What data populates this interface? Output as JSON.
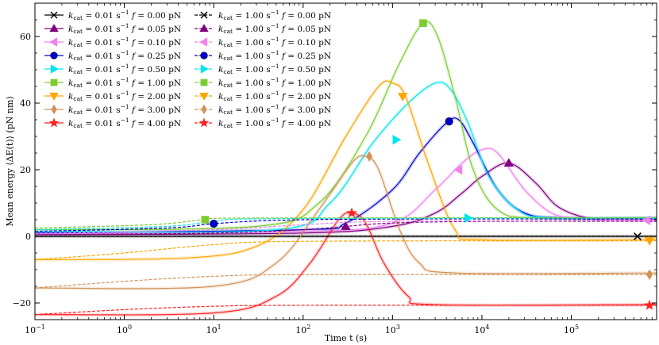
{
  "chart_data": {
    "type": "line",
    "title": "",
    "xlabel": "Time t (s)",
    "ylabel": "Mean energy ⟨ΔE(t)⟩ (pN nm)",
    "xscale": "log",
    "xlim": [
      0.1,
      900000
    ],
    "ylim": [
      -25,
      70
    ],
    "x_ticks": [
      {
        "value": 0.1,
        "base": "10",
        "exp": "−1"
      },
      {
        "value": 1,
        "base": "10",
        "exp": "0"
      },
      {
        "value": 10,
        "base": "10",
        "exp": "1"
      },
      {
        "value": 100,
        "base": "10",
        "exp": "2"
      },
      {
        "value": 1000,
        "base": "10",
        "exp": "3"
      },
      {
        "value": 10000,
        "base": "10",
        "exp": "4"
      },
      {
        "value": 100000,
        "base": "10",
        "exp": "5"
      }
    ],
    "y_ticks": [
      {
        "value": -20,
        "label": "−20"
      },
      {
        "value": 0,
        "label": "0"
      },
      {
        "value": 20,
        "label": "20"
      },
      {
        "value": 40,
        "label": "40"
      },
      {
        "value": 60,
        "label": "60"
      }
    ],
    "legend_location": "upper-left",
    "series": [
      {
        "name": "k_cat = 0.01 s^-1  f = 0.00 pN",
        "kcat_value": "0.01",
        "f_value": "0.00",
        "color": "#000000",
        "linestyle": "solid",
        "marker": "x",
        "points": [
          [
            0.1,
            0
          ],
          [
            900000,
            0
          ]
        ],
        "marker_at": [
          550000,
          0
        ]
      },
      {
        "name": "k_cat = 0.01 s^-1  f = 0.05 pN",
        "kcat_value": "0.01",
        "f_value": "0.05",
        "color": "#800080",
        "linestyle": "solid",
        "marker": "triangle-up",
        "points": [
          [
            0.1,
            0.5
          ],
          [
            100,
            1
          ],
          [
            1000,
            3
          ],
          [
            3000,
            7
          ],
          [
            6000,
            13
          ],
          [
            10000,
            18
          ],
          [
            20000,
            22
          ],
          [
            40000,
            16
          ],
          [
            70000,
            9
          ],
          [
            150000,
            5.5
          ],
          [
            300000,
            5
          ],
          [
            900000,
            5
          ]
        ],
        "marker_at": [
          20000,
          22
        ]
      },
      {
        "name": "k_cat = 0.01 s^-1  f = 0.10 pN",
        "kcat_value": "0.01",
        "f_value": "0.10",
        "color": "#ee82ee",
        "linestyle": "solid",
        "marker": "triangle-left",
        "points": [
          [
            0.1,
            0.8
          ],
          [
            100,
            1.5
          ],
          [
            1000,
            4
          ],
          [
            3000,
            14
          ],
          [
            6000,
            22
          ],
          [
            10000,
            26
          ],
          [
            15000,
            25
          ],
          [
            30000,
            14
          ],
          [
            60000,
            7
          ],
          [
            120000,
            5.5
          ],
          [
            300000,
            5
          ],
          [
            900000,
            5
          ]
        ],
        "marker_at": [
          5500,
          20
        ]
      },
      {
        "name": "k_cat = 0.01 s^-1  f = 0.25 pN",
        "kcat_value": "0.01",
        "f_value": "0.25",
        "color": "#0000cd",
        "linestyle": "solid",
        "marker": "circle",
        "points": [
          [
            0.1,
            1
          ],
          [
            100,
            2
          ],
          [
            300,
            4
          ],
          [
            1000,
            14
          ],
          [
            2000,
            25
          ],
          [
            4000,
            34
          ],
          [
            5500,
            35
          ],
          [
            8000,
            28
          ],
          [
            15000,
            14
          ],
          [
            30000,
            7
          ],
          [
            80000,
            5.5
          ],
          [
            900000,
            5.5
          ]
        ],
        "marker_at": [
          4300,
          34.5
        ]
      },
      {
        "name": "k_cat = 0.01 s^-1  f = 0.50 pN",
        "kcat_value": "0.01",
        "f_value": "0.50",
        "color": "#00e5ee",
        "linestyle": "solid",
        "marker": "triangle-right",
        "points": [
          [
            0.1,
            1.5
          ],
          [
            50,
            2
          ],
          [
            200,
            10
          ],
          [
            600,
            28
          ],
          [
            1500,
            40
          ],
          [
            3000,
            46
          ],
          [
            4500,
            44
          ],
          [
            7000,
            34
          ],
          [
            12000,
            18
          ],
          [
            25000,
            8
          ],
          [
            60000,
            5.5
          ],
          [
            900000,
            5.5
          ]
        ],
        "marker_at": [
          1100,
          29
        ]
      },
      {
        "name": "k_cat = 0.01 s^-1  f = 1.00 pN",
        "kcat_value": "0.01",
        "f_value": "1.00",
        "color": "#7ccd32",
        "linestyle": "solid",
        "marker": "square",
        "points": [
          [
            0.1,
            2
          ],
          [
            30,
            3
          ],
          [
            150,
            10
          ],
          [
            500,
            30
          ],
          [
            1200,
            52
          ],
          [
            2200,
            64
          ],
          [
            3200,
            60
          ],
          [
            5000,
            42
          ],
          [
            8000,
            20
          ],
          [
            15000,
            8
          ],
          [
            40000,
            5.5
          ],
          [
            900000,
            5.5
          ]
        ],
        "marker_at": [
          2200,
          64
        ]
      },
      {
        "name": "k_cat = 0.01 s^-1  f = 2.00 pN",
        "kcat_value": "0.01",
        "f_value": "2.00",
        "color": "#ffa500",
        "linestyle": "solid",
        "marker": "triangle-down",
        "points": [
          [
            0.1,
            -7
          ],
          [
            5,
            -6.5
          ],
          [
            30,
            -3
          ],
          [
            100,
            8
          ],
          [
            300,
            30
          ],
          [
            700,
            45
          ],
          [
            1000,
            46
          ],
          [
            1400,
            42
          ],
          [
            2500,
            22
          ],
          [
            5000,
            2
          ],
          [
            10000,
            -1
          ],
          [
            900000,
            -1
          ]
        ],
        "marker_at": [
          1300,
          42
        ]
      },
      {
        "name": "k_cat = 0.01 s^-1  f = 3.00 pN",
        "kcat_value": "0.01",
        "f_value": "3.00",
        "color": "#d2935a",
        "linestyle": "solid",
        "marker": "diamond",
        "points": [
          [
            0.1,
            -15.5
          ],
          [
            10,
            -15
          ],
          [
            50,
            -8
          ],
          [
            150,
            8
          ],
          [
            350,
            22
          ],
          [
            500,
            24
          ],
          [
            700,
            20
          ],
          [
            1200,
            2
          ],
          [
            2000,
            -8
          ],
          [
            5000,
            -11
          ],
          [
            900000,
            -11
          ]
        ],
        "marker_at": [
          550,
          24
        ]
      },
      {
        "name": "k_cat = 0.01 s^-1  f = 4.00 pN",
        "kcat_value": "0.01",
        "f_value": "4.00",
        "color": "#ff2020",
        "linestyle": "solid",
        "marker": "star",
        "points": [
          [
            0.1,
            -23.5
          ],
          [
            10,
            -23
          ],
          [
            50,
            -18
          ],
          [
            120,
            -8
          ],
          [
            250,
            5
          ],
          [
            350,
            7
          ],
          [
            500,
            4
          ],
          [
            800,
            -8
          ],
          [
            1500,
            -18
          ],
          [
            3000,
            -20.5
          ],
          [
            900000,
            -20.5
          ]
        ],
        "marker_at": [
          350,
          7
        ]
      },
      {
        "name": "k_cat = 1.00 s^-1  f = 0.00 pN",
        "kcat_value": "1.00",
        "f_value": "0.00",
        "color": "#000000",
        "linestyle": "dashed",
        "marker": "x",
        "points": [
          [
            0.1,
            0
          ],
          [
            900000,
            0
          ]
        ],
        "marker_at": [
          550000,
          0
        ]
      },
      {
        "name": "k_cat = 1.00 s^-1  f = 0.05 pN",
        "kcat_value": "1.00",
        "f_value": "0.05",
        "color": "#800080",
        "linestyle": "dashed",
        "marker": "triangle-up",
        "points": [
          [
            0.1,
            0.5
          ],
          [
            10,
            1
          ],
          [
            100,
            2
          ],
          [
            300,
            3
          ],
          [
            1000,
            4
          ],
          [
            10000,
            4.5
          ],
          [
            900000,
            4.5
          ]
        ],
        "marker_at": [
          300,
          3
        ]
      },
      {
        "name": "k_cat = 1.00 s^-1  f = 0.10 pN",
        "kcat_value": "1.00",
        "f_value": "0.10",
        "color": "#ee82ee",
        "linestyle": "dashed",
        "marker": "triangle-left",
        "points": [
          [
            0.1,
            0.8
          ],
          [
            10,
            2
          ],
          [
            100,
            3.5
          ],
          [
            1000,
            4.5
          ],
          [
            900000,
            4.8
          ]
        ],
        "marker_at": [
          700000,
          4.8
        ]
      },
      {
        "name": "k_cat = 1.00 s^-1  f = 0.25 pN",
        "kcat_value": "1.00",
        "f_value": "0.25",
        "color": "#0000cd",
        "linestyle": "dashed",
        "marker": "circle",
        "points": [
          [
            0.1,
            1.5
          ],
          [
            3,
            2.5
          ],
          [
            10,
            3.8
          ],
          [
            50,
            4.8
          ],
          [
            1000,
            5.2
          ],
          [
            900000,
            5.2
          ]
        ],
        "marker_at": [
          10,
          3.8
        ]
      },
      {
        "name": "k_cat = 1.00 s^-1  f = 0.50 pN",
        "kcat_value": "1.00",
        "f_value": "0.50",
        "color": "#00e5ee",
        "linestyle": "dashed",
        "marker": "triangle-right",
        "points": [
          [
            0.1,
            2
          ],
          [
            3,
            3
          ],
          [
            10,
            4.5
          ],
          [
            50,
            5.3
          ],
          [
            900000,
            5.5
          ]
        ],
        "marker_at": [
          7000,
          5.5
        ]
      },
      {
        "name": "k_cat = 1.00 s^-1  f = 1.00 pN",
        "kcat_value": "1.00",
        "f_value": "1.00",
        "color": "#7ccd32",
        "linestyle": "dashed",
        "marker": "square",
        "points": [
          [
            0.1,
            2.5
          ],
          [
            2,
            3.5
          ],
          [
            8,
            5
          ],
          [
            30,
            5.5
          ],
          [
            900000,
            5.6
          ]
        ],
        "marker_at": [
          8,
          5
        ]
      },
      {
        "name": "k_cat = 1.00 s^-1  f = 2.00 pN",
        "kcat_value": "1.00",
        "f_value": "2.00",
        "color": "#ffa500",
        "linestyle": "dashed",
        "marker": "triangle-down",
        "points": [
          [
            0.1,
            -7
          ],
          [
            1,
            -5
          ],
          [
            10,
            -2.5
          ],
          [
            100,
            -1.5
          ],
          [
            900000,
            -1.3
          ]
        ],
        "marker_at": [
          750000,
          -1.3
        ]
      },
      {
        "name": "k_cat = 1.00 s^-1  f = 3.00 pN",
        "kcat_value": "1.00",
        "f_value": "3.00",
        "color": "#d2935a",
        "linestyle": "dashed",
        "marker": "diamond",
        "points": [
          [
            0.1,
            -15.5
          ],
          [
            1,
            -13.5
          ],
          [
            10,
            -12
          ],
          [
            100,
            -11.5
          ],
          [
            900000,
            -11.5
          ]
        ],
        "marker_at": [
          750000,
          -11.5
        ]
      },
      {
        "name": "k_cat = 1.00 s^-1  f = 4.00 pN",
        "kcat_value": "1.00",
        "f_value": "4.00",
        "color": "#ff2020",
        "linestyle": "dashed",
        "marker": "star",
        "points": [
          [
            0.1,
            -23.5
          ],
          [
            1,
            -22
          ],
          [
            10,
            -21
          ],
          [
            100,
            -20.7
          ],
          [
            900000,
            -20.7
          ]
        ],
        "marker_at": [
          750000,
          -20.7
        ]
      }
    ]
  }
}
